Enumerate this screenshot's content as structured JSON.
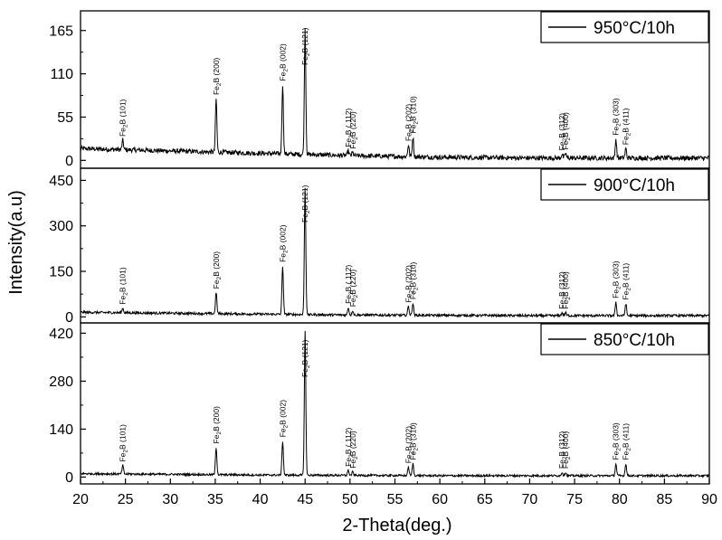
{
  "chart_data": {
    "type": "line",
    "xlabel": "2-Theta(deg.)",
    "ylabel": "Intensity(a.u)",
    "xlim": [
      20,
      90
    ],
    "xticks": [
      20,
      25,
      30,
      35,
      40,
      45,
      50,
      55,
      60,
      65,
      70,
      75,
      80,
      85,
      90
    ],
    "grid": false,
    "legend_position": "top-right",
    "colors": {
      "line": "#000000",
      "frame": "#000000",
      "background": "#ffffff"
    },
    "peaks": [
      {
        "x": 24.7,
        "label": "Fe2B (101)"
      },
      {
        "x": 35.1,
        "label": "Fe2B (200)"
      },
      {
        "x": 42.5,
        "label": "Fe2B (002)"
      },
      {
        "x": 45.0,
        "label": "Fe2B (121)"
      },
      {
        "x": 49.8,
        "label": "Fe2B ( 112)"
      },
      {
        "x": 50.3,
        "label": "Fe2B (220)"
      },
      {
        "x": 56.5,
        "label": "Fe2B (202)"
      },
      {
        "x": 57.0,
        "label": "Fe2B (310)"
      },
      {
        "x": 73.6,
        "label": "Fe2B (312)"
      },
      {
        "x": 74.0,
        "label": "Fe2B (400)"
      },
      {
        "x": 79.6,
        "label": "Fe2B (303)"
      },
      {
        "x": 80.7,
        "label": "Fe2B (411)"
      }
    ],
    "panels": [
      {
        "name": "950°C/10h",
        "ylim": [
          -10,
          190
        ],
        "yticks": [
          0,
          55,
          110,
          165
        ],
        "baseline": [
          [
            20,
            15
          ],
          [
            30,
            12
          ],
          [
            40,
            9
          ],
          [
            50,
            6
          ],
          [
            60,
            4
          ],
          [
            70,
            3
          ],
          [
            80,
            3
          ],
          [
            90,
            3
          ]
        ],
        "noise": 3,
        "peak_heights": [
          12,
          68,
          88,
          160,
          6,
          4,
          15,
          25,
          5,
          6,
          24,
          12
        ]
      },
      {
        "name": "900°C/10h",
        "ylim": [
          -20,
          490
        ],
        "yticks": [
          0,
          150,
          300,
          450
        ],
        "baseline": [
          [
            20,
            15
          ],
          [
            30,
            12
          ],
          [
            40,
            9
          ],
          [
            50,
            6
          ],
          [
            60,
            5
          ],
          [
            70,
            4
          ],
          [
            80,
            4
          ],
          [
            90,
            4
          ]
        ],
        "noise": 4,
        "peak_heights": [
          15,
          70,
          160,
          420,
          25,
          15,
          30,
          40,
          10,
          10,
          45,
          40
        ]
      },
      {
        "name": "850°C/10h",
        "ylim": [
          -20,
          450
        ],
        "yticks": [
          0,
          140,
          280,
          420
        ],
        "baseline": [
          [
            20,
            10
          ],
          [
            30,
            8
          ],
          [
            40,
            6
          ],
          [
            50,
            5
          ],
          [
            60,
            4
          ],
          [
            70,
            4
          ],
          [
            80,
            4
          ],
          [
            90,
            4
          ]
        ],
        "noise": 3,
        "peak_heights": [
          25,
          80,
          100,
          420,
          15,
          10,
          25,
          35,
          10,
          10,
          35,
          35
        ]
      }
    ]
  }
}
